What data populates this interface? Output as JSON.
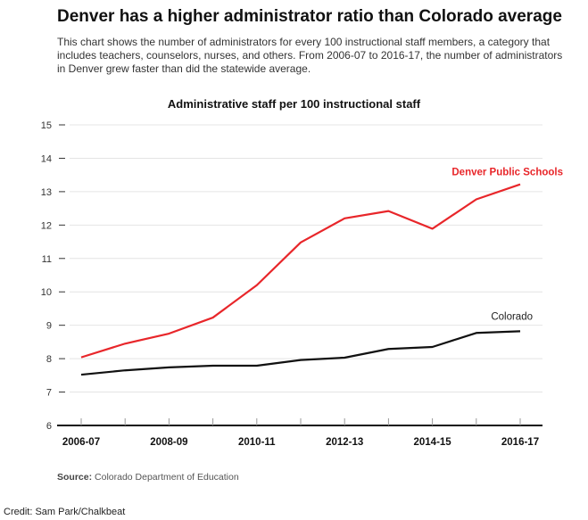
{
  "title": "Denver has a higher administrator ratio than Colorado average",
  "subtitle": "This chart shows the number of administrators for every 100 instructional staff members, a category that includes teachers, counselors, nurses, and others. From 2006-07 to 2016-17, the number of administrators in Denver grew faster than did the statewide average.",
  "source_label": "Source:",
  "source_text": "Colorado Department of Education",
  "credit": "Credit: Sam Park/Chalkbeat",
  "chart_data": {
    "type": "line",
    "title": "Administrative staff per 100 instructional staff",
    "x": [
      "2006-07",
      "2007-08",
      "2008-09",
      "2009-10",
      "2010-11",
      "2011-12",
      "2012-13",
      "2013-14",
      "2014-15",
      "2015-16",
      "2016-17"
    ],
    "x_tick_labels": [
      "2006-07",
      "2008-09",
      "2010-11",
      "2012-13",
      "2014-15",
      "2016-17"
    ],
    "ylim": [
      6,
      15
    ],
    "y_ticks": [
      6,
      7,
      8,
      9,
      10,
      11,
      12,
      13,
      14,
      15
    ],
    "grid": true,
    "series": [
      {
        "name": "Denver Public Schools",
        "color": "#e8262a",
        "values": [
          8.04,
          8.45,
          8.75,
          9.23,
          10.2,
          11.48,
          12.2,
          12.42,
          11.89,
          12.77,
          13.22
        ]
      },
      {
        "name": "Colorado",
        "color": "#111111",
        "values": [
          7.52,
          7.65,
          7.74,
          7.79,
          7.79,
          7.96,
          8.03,
          8.29,
          8.35,
          8.77,
          8.82
        ]
      }
    ]
  }
}
